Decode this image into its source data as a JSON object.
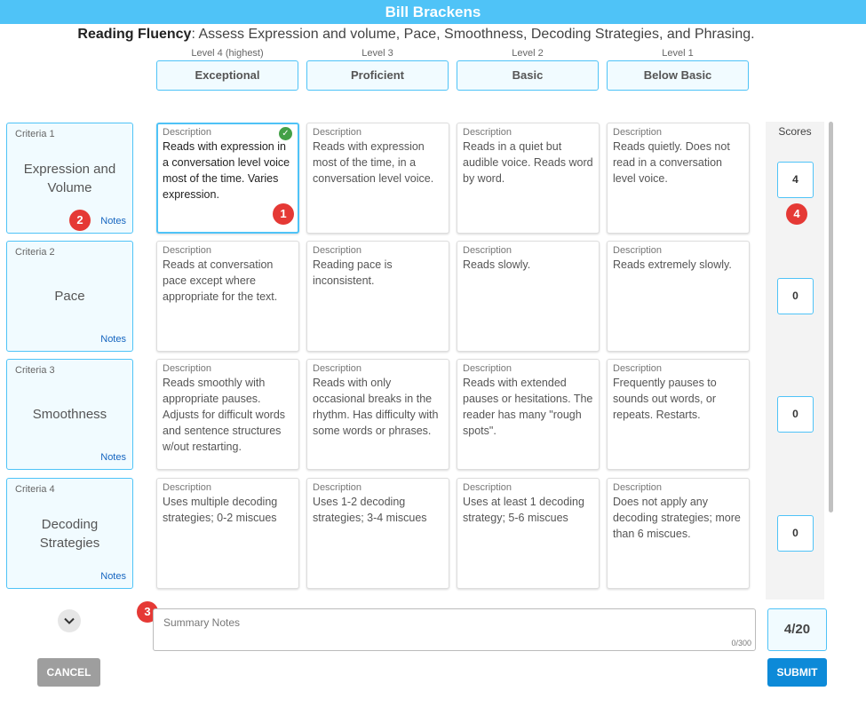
{
  "header": {
    "student_name": "Bill Brackens"
  },
  "rubric": {
    "title": "Reading Fluency",
    "description": ": Assess Expression and volume, Pace, Smoothness, Decoding Strategies, and Phrasing."
  },
  "levels": [
    {
      "caption": "Level 4 (highest)",
      "label": "Exceptional"
    },
    {
      "caption": "Level 3",
      "label": "Proficient"
    },
    {
      "caption": "Level 2",
      "label": "Basic"
    },
    {
      "caption": "Level 1",
      "label": "Below Basic"
    }
  ],
  "description_label": "Description",
  "notes_label": "Notes",
  "criteria": [
    {
      "num": "Criteria 1",
      "name": "Expression and Volume",
      "score": "4",
      "descriptions": [
        "Reads with expression in a conversation level voice most of the time. Varies expression.",
        "Reads with expression most of the time, in a conversation level voice.",
        "Reads in a quiet but audible voice. Reads word by word.",
        "Reads quietly. Does not read in a conversation level voice."
      ]
    },
    {
      "num": "Criteria 2",
      "name": "Pace",
      "score": "0",
      "descriptions": [
        "Reads at conversation pace except where appropriate for the text.",
        "Reading pace is inconsistent.",
        "Reads slowly.",
        "Reads extremely slowly."
      ]
    },
    {
      "num": "Criteria 3",
      "name": "Smoothness",
      "score": "0",
      "descriptions": [
        "Reads smoothly with appropriate pauses. Adjusts for difficult words and sentence structures w/out restarting.",
        "Reads with only occasional breaks in the rhythm. Has difficulty with some words or phrases.",
        "Reads with extended pauses or hesitations. The reader has many \"rough spots\".",
        "Frequently pauses to sounds out words, or repeats. Restarts."
      ]
    },
    {
      "num": "Criteria 4",
      "name": "Decoding Strategies",
      "score": "0",
      "descriptions": [
        "Uses multiple decoding strategies; 0-2 miscues",
        "Uses 1-2 decoding strategies; 3-4 miscues",
        "Uses at least 1 decoding strategy; 5-6 miscues",
        "Does not apply any decoding strategies; more than 6 miscues."
      ]
    }
  ],
  "scores_title": "Scores",
  "summary": {
    "placeholder": "Summary Notes",
    "char_count": "0/300"
  },
  "total": "4/20",
  "buttons": {
    "cancel": "CANCEL",
    "submit": "SUBMIT"
  },
  "callouts": [
    "1",
    "2",
    "3",
    "4"
  ],
  "colors": {
    "accent": "#4fc3f7",
    "submit": "#0d8ad8",
    "callout": "#e53935",
    "check": "#43a047"
  }
}
